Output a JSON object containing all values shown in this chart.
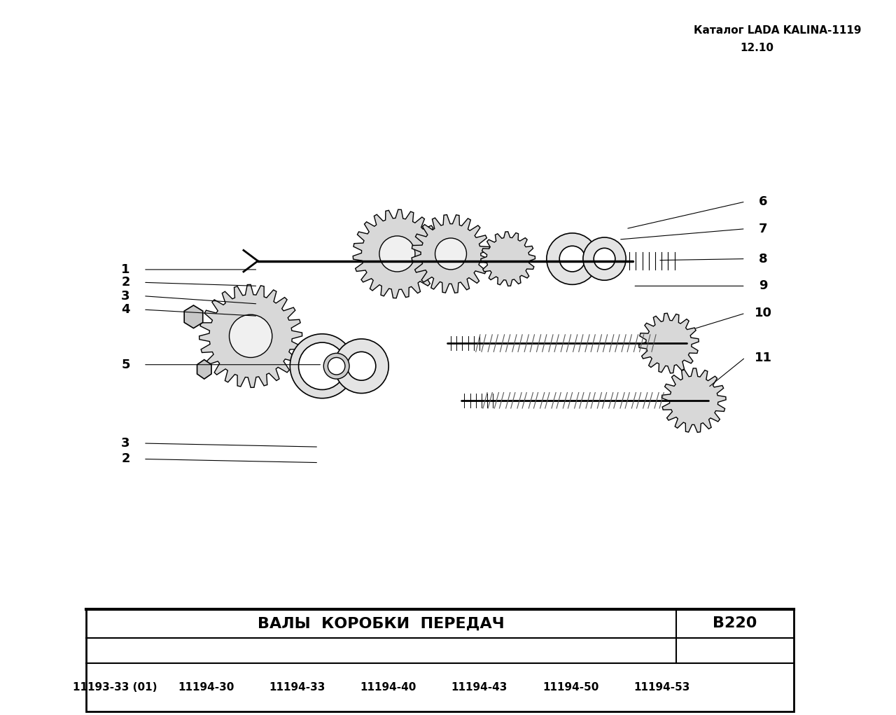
{
  "header_line1": "Каталог LADA KALINA-1119",
  "header_line2": "12.10",
  "table_title": "ВАЛЫ  КОРОБКИ  ПЕРЕДАЧ",
  "table_code": "В220",
  "part_numbers": [
    "11193-33 (01)",
    "11194-30",
    "11194-33",
    "11194-40",
    "11194-43",
    "11194-50",
    "11194-53"
  ],
  "bg_color": "#ffffff",
  "line_color": "#000000"
}
